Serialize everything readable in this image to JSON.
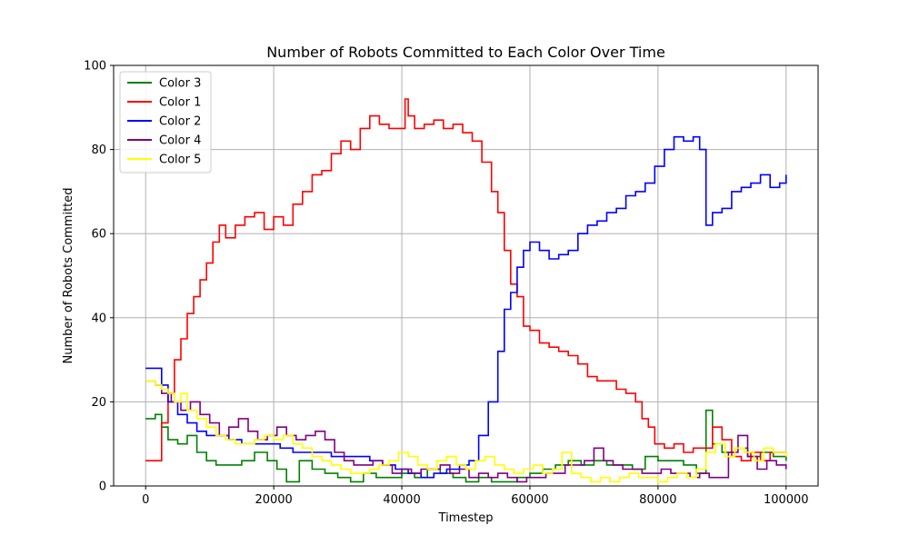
{
  "chart_data": {
    "type": "line",
    "title": "Number of Robots Committed to Each Color Over Time",
    "xlabel": "Timestep",
    "ylabel": "Number of Robots Committed",
    "xlim": [
      -5000,
      105000
    ],
    "ylim": [
      0,
      100
    ],
    "xticks": [
      0,
      20000,
      40000,
      60000,
      80000,
      100000
    ],
    "yticks": [
      0,
      20,
      40,
      60,
      80,
      100
    ],
    "grid": true,
    "legend_position": "upper-left",
    "series": [
      {
        "name": "Color 3",
        "color": "#008000",
        "x": [
          0,
          1500,
          2500,
          3500,
          5000,
          6500,
          8000,
          9500,
          11000,
          13000,
          15000,
          17000,
          19000,
          20500,
          22000,
          24000,
          26000,
          28000,
          30000,
          32000,
          34000,
          36000,
          38000,
          40000,
          42000,
          44000,
          46000,
          48000,
          50000,
          52000,
          54000,
          56000,
          58000,
          60000,
          62000,
          64000,
          66000,
          68000,
          70000,
          72000,
          74000,
          76000,
          78000,
          80000,
          82000,
          84000,
          86000,
          87500,
          88500,
          90000,
          92000,
          94000,
          96000,
          98000,
          100000
        ],
        "values": [
          16,
          17,
          14,
          11,
          10,
          12,
          8,
          6,
          5,
          5,
          6,
          8,
          6,
          4,
          1,
          6,
          4,
          3,
          2,
          1,
          3,
          2,
          2,
          3,
          2,
          4,
          3,
          2,
          1,
          2,
          1,
          1,
          2,
          3,
          4,
          5,
          6,
          5,
          6,
          5,
          5,
          4,
          7,
          6,
          6,
          5,
          3,
          18,
          10,
          8,
          9,
          7,
          8,
          7,
          6
        ]
      },
      {
        "name": "Color 1",
        "color": "#ff0000",
        "x": [
          0,
          1500,
          2500,
          3500,
          4500,
          5500,
          6500,
          7500,
          8500,
          9500,
          10500,
          11500,
          12500,
          14000,
          15500,
          17000,
          18500,
          20000,
          21500,
          23000,
          24500,
          26000,
          27500,
          29000,
          30500,
          32000,
          33500,
          35000,
          36500,
          38000,
          39500,
          40500,
          41000,
          42000,
          43500,
          45000,
          46500,
          48000,
          49500,
          51000,
          52500,
          54000,
          55000,
          56000,
          57000,
          58000,
          59000,
          60000,
          61500,
          63000,
          64500,
          66000,
          67500,
          69000,
          70500,
          72000,
          73500,
          75000,
          76500,
          77500,
          78500,
          79500,
          81000,
          82500,
          84000,
          85500,
          87000,
          88500,
          90000,
          91500,
          93000,
          94500,
          96000,
          97500,
          100000
        ],
        "values": [
          6,
          6,
          15,
          22,
          30,
          35,
          41,
          45,
          49,
          53,
          58,
          62,
          59,
          62,
          64,
          65,
          61,
          64,
          62,
          67,
          70,
          74,
          75,
          79,
          82,
          80,
          85,
          88,
          86,
          85,
          85,
          92,
          88,
          85,
          86,
          87,
          85,
          86,
          84,
          82,
          77,
          70,
          65,
          56,
          48,
          45,
          38,
          37,
          34,
          33,
          32,
          31,
          29,
          26,
          25,
          25,
          23,
          22,
          20,
          16,
          14,
          10,
          9,
          10,
          8,
          9,
          9,
          14,
          11,
          7,
          6,
          8,
          6,
          8,
          7
        ]
      },
      {
        "name": "Color 2",
        "color": "#0000ff",
        "x": [
          0,
          1500,
          2500,
          3500,
          5000,
          6500,
          8000,
          9500,
          11000,
          13000,
          15000,
          17000,
          19000,
          21000,
          23000,
          25000,
          27000,
          29000,
          31000,
          33000,
          35000,
          37000,
          39000,
          41000,
          43000,
          45000,
          47000,
          49000,
          50500,
          52000,
          53500,
          55000,
          56000,
          57000,
          58000,
          59000,
          60000,
          61500,
          63000,
          64500,
          66000,
          67500,
          69000,
          70500,
          72000,
          73500,
          75000,
          76500,
          78000,
          79500,
          81000,
          82500,
          84000,
          85500,
          86500,
          87500,
          88500,
          90000,
          91500,
          93000,
          94500,
          96000,
          97500,
          99000,
          100000
        ],
        "values": [
          28,
          28,
          24,
          20,
          17,
          15,
          13,
          12,
          12,
          11,
          10,
          10,
          10,
          9,
          8,
          8,
          8,
          7,
          7,
          7,
          6,
          5,
          4,
          3,
          2,
          3,
          4,
          5,
          6,
          12,
          20,
          32,
          42,
          46,
          52,
          56,
          58,
          56,
          54,
          55,
          56,
          60,
          62,
          63,
          65,
          66,
          69,
          70,
          72,
          76,
          80,
          83,
          82,
          83,
          80,
          62,
          65,
          66,
          70,
          71,
          72,
          74,
          71,
          72,
          74
        ]
      },
      {
        "name": "Color 4",
        "color": "#800080",
        "x": [
          0,
          1500,
          2500,
          4000,
          5500,
          7000,
          8500,
          10000,
          11500,
          13000,
          14500,
          16000,
          17500,
          19000,
          20500,
          22000,
          23500,
          25000,
          26500,
          28000,
          29500,
          31000,
          32500,
          34000,
          35500,
          37000,
          38500,
          40000,
          41500,
          43000,
          44500,
          46000,
          47500,
          49000,
          50500,
          52000,
          53500,
          55000,
          56500,
          58000,
          59500,
          61000,
          62500,
          64000,
          65500,
          67000,
          68500,
          70000,
          71500,
          73000,
          74500,
          76000,
          77500,
          79000,
          80500,
          82000,
          83500,
          85000,
          86500,
          88000,
          89500,
          91000,
          92500,
          94000,
          95500,
          97000,
          98500,
          100000
        ],
        "values": [
          25,
          24,
          22,
          20,
          18,
          20,
          17,
          15,
          12,
          14,
          16,
          13,
          11,
          12,
          14,
          12,
          11,
          12,
          13,
          11,
          8,
          6,
          5,
          5,
          6,
          5,
          3,
          4,
          3,
          4,
          4,
          5,
          3,
          4,
          2,
          3,
          2,
          3,
          2,
          1,
          2,
          2,
          3,
          3,
          5,
          5,
          6,
          9,
          6,
          5,
          4,
          4,
          3,
          3,
          4,
          3,
          3,
          2,
          3,
          2,
          2,
          8,
          12,
          7,
          4,
          6,
          5,
          4
        ]
      },
      {
        "name": "Color 5",
        "color": "#ffff00",
        "x": [
          0,
          1500,
          2500,
          3500,
          4500,
          5500,
          6500,
          8000,
          9500,
          11000,
          12500,
          14000,
          15500,
          17000,
          18500,
          20000,
          21500,
          23000,
          24500,
          26000,
          27500,
          29000,
          30500,
          32000,
          33500,
          35000,
          36500,
          38000,
          39500,
          41000,
          42500,
          44000,
          45500,
          47000,
          48500,
          50000,
          51500,
          53000,
          54500,
          56000,
          57500,
          59000,
          60500,
          62000,
          63500,
          65000,
          66500,
          68000,
          69500,
          71000,
          72500,
          74000,
          75500,
          77000,
          78500,
          80000,
          81500,
          83000,
          84500,
          86000,
          87500,
          89000,
          90500,
          92000,
          93500,
          95000,
          96500,
          98000,
          100000
        ],
        "values": [
          25,
          24,
          23,
          22,
          20,
          22,
          18,
          16,
          14,
          12,
          11,
          10,
          10,
          11,
          12,
          11,
          12,
          10,
          9,
          7,
          6,
          5,
          4,
          3,
          3,
          4,
          5,
          6,
          8,
          7,
          5,
          4,
          6,
          7,
          5,
          4,
          6,
          7,
          5,
          4,
          3,
          4,
          5,
          3,
          4,
          8,
          3,
          2,
          1,
          2,
          1,
          2,
          3,
          2,
          2,
          1,
          2,
          3,
          2,
          4,
          8,
          10,
          7,
          9,
          8,
          6,
          9,
          8,
          7
        ]
      }
    ]
  }
}
